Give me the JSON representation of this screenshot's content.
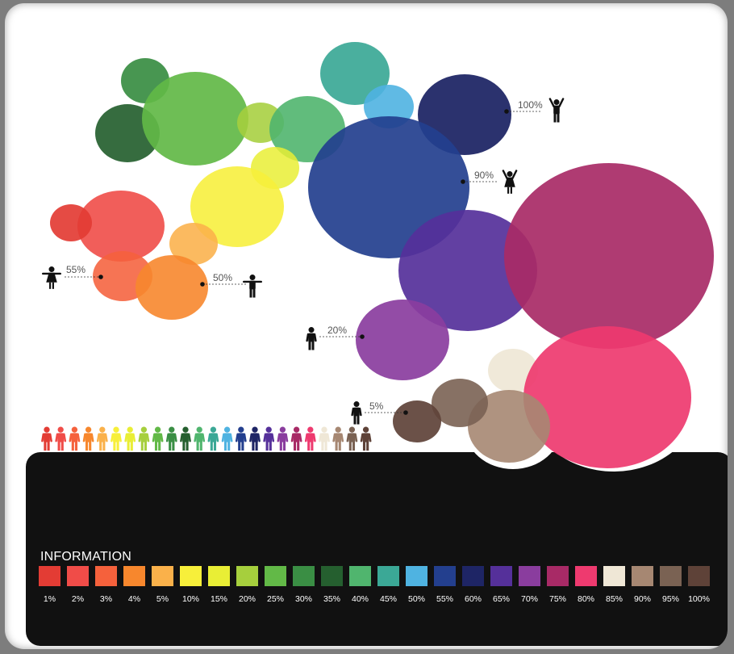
{
  "chart_data": {
    "type": "bubble",
    "legend": {
      "title": "INFORMATION",
      "items": [
        {
          "label": "1%",
          "color": "#e33c34"
        },
        {
          "label": "2%",
          "color": "#f04c48"
        },
        {
          "label": "3%",
          "color": "#f5613c"
        },
        {
          "label": "4%",
          "color": "#f7872d"
        },
        {
          "label": "5%",
          "color": "#fab14a"
        },
        {
          "label": "10%",
          "color": "#f7ef3a"
        },
        {
          "label": "15%",
          "color": "#e9ee35"
        },
        {
          "label": "20%",
          "color": "#a6cf3d"
        },
        {
          "label": "25%",
          "color": "#62b947"
        },
        {
          "label": "30%",
          "color": "#3a8e44"
        },
        {
          "label": "35%",
          "color": "#255f2f"
        },
        {
          "label": "40%",
          "color": "#50b56e"
        },
        {
          "label": "45%",
          "color": "#3ba896"
        },
        {
          "label": "50%",
          "color": "#4fb3e1"
        },
        {
          "label": "55%",
          "color": "#233f8e"
        },
        {
          "label": "60%",
          "color": "#1e2565"
        },
        {
          "label": "65%",
          "color": "#55309a"
        },
        {
          "label": "70%",
          "color": "#8a3d9e"
        },
        {
          "label": "75%",
          "color": "#a82a66"
        },
        {
          "label": "80%",
          "color": "#ee3a6f"
        },
        {
          "label": "85%",
          "color": "#efe7d6"
        },
        {
          "label": "90%",
          "color": "#a68772"
        },
        {
          "label": "95%",
          "color": "#7a6253"
        },
        {
          "label": "100%",
          "color": "#5e4238"
        }
      ]
    },
    "bubbles": [
      {
        "color": "#3a8e44"
      },
      {
        "color": "#255f2f"
      },
      {
        "color": "#62b947"
      },
      {
        "color": "#a6cf3d"
      },
      {
        "color": "#50b56e"
      },
      {
        "color": "#3ba896"
      },
      {
        "color": "#4fb3e1"
      },
      {
        "color": "#1e2565"
      },
      {
        "color": "#233f8e"
      },
      {
        "color": "#e9ee35"
      },
      {
        "color": "#f7ef3a"
      },
      {
        "color": "#f04c48"
      },
      {
        "color": "#e33c34"
      },
      {
        "color": "#fab14a"
      },
      {
        "color": "#f5613c"
      },
      {
        "color": "#f7872d"
      },
      {
        "color": "#55309a"
      },
      {
        "color": "#a82a66"
      },
      {
        "color": "#8a3d9e"
      },
      {
        "color": "#efe7d6"
      },
      {
        "color": "#ee3a6f"
      },
      {
        "color": "#a68772"
      },
      {
        "color": "#7a6253"
      },
      {
        "color": "#5e4238"
      }
    ],
    "annotations": [
      {
        "label": "100%",
        "figure": "person-arms-up"
      },
      {
        "label": "90%",
        "figure": "girl-arms-up"
      },
      {
        "label": "55%",
        "figure": "girl-arms-out"
      },
      {
        "label": "50%",
        "figure": "person-arms-out"
      },
      {
        "label": "20%",
        "figure": "person-standing"
      },
      {
        "label": "5%",
        "figure": "person-standing"
      }
    ],
    "people_row": {
      "figure": "person-standing",
      "colors": [
        "#e33c34",
        "#f04c48",
        "#f5613c",
        "#f7872d",
        "#fab14a",
        "#f7ef3a",
        "#e9ee35",
        "#a6cf3d",
        "#62b947",
        "#3a8e44",
        "#255f2f",
        "#50b56e",
        "#3ba896",
        "#4fb3e1",
        "#233f8e",
        "#1e2565",
        "#55309a",
        "#8a3d9e",
        "#a82a66",
        "#ee3a6f",
        "#efe7d6",
        "#a68772",
        "#7a6253",
        "#5e4238"
      ]
    }
  }
}
